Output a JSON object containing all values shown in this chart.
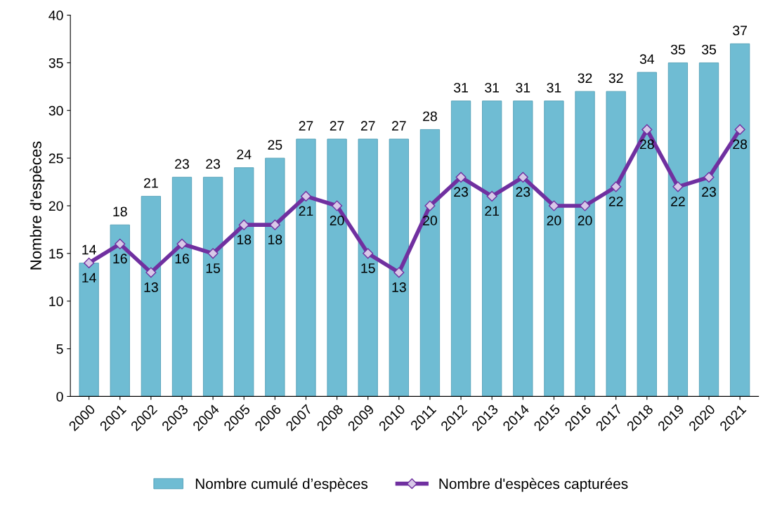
{
  "chart_data": {
    "type": "bar",
    "ylabel": "Nombre d'espèces",
    "categories": [
      "2000",
      "2001",
      "2002",
      "2003",
      "2004",
      "2005",
      "2006",
      "2007",
      "2008",
      "2009",
      "2010",
      "2011",
      "2012",
      "2013",
      "2014",
      "2015",
      "2016",
      "2017",
      "2018",
      "2019",
      "2020",
      "2021"
    ],
    "series": [
      {
        "name": "Nombre cumulé d’espèces",
        "color": "#6fbcd3",
        "values": [
          14,
          18,
          21,
          23,
          23,
          24,
          25,
          27,
          27,
          27,
          27,
          28,
          31,
          31,
          31,
          31,
          32,
          32,
          34,
          35,
          35,
          37
        ]
      },
      {
        "name": "Nombre d'espèces capturées",
        "type": "line",
        "color": "#7030a0",
        "marker": "diamond",
        "values": [
          14,
          16,
          13,
          16,
          15,
          18,
          18,
          21,
          20,
          15,
          13,
          20,
          23,
          21,
          23,
          20,
          20,
          22,
          28,
          22,
          23,
          28
        ]
      }
    ],
    "ylim": [
      0,
      40
    ],
    "yticks": [
      0,
      5,
      10,
      15,
      20,
      25,
      30,
      35,
      40
    ],
    "data_labels": true,
    "grid": false,
    "legend": "bottom"
  }
}
